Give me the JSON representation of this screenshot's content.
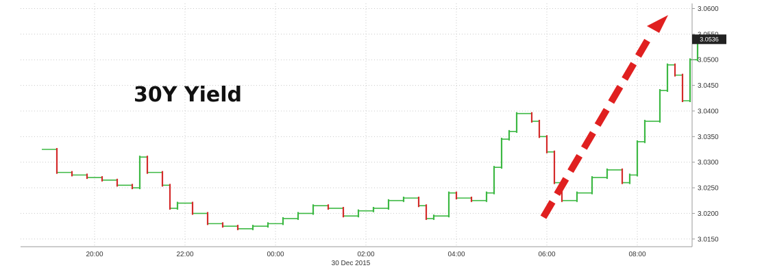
{
  "chart_data": {
    "type": "line",
    "title": "30Y Yield",
    "date_label": "30 Dec 2015",
    "x_ticks": [
      "20:00",
      "22:00",
      "00:00",
      "02:00",
      "04:00",
      "06:00",
      "08:00"
    ],
    "y_ticks": [
      "3.0150",
      "3.0200",
      "3.0250",
      "3.0300",
      "3.0350",
      "3.0400",
      "3.0450",
      "3.0500",
      "3.0550",
      "3.0600"
    ],
    "ylim": [
      3.0135,
      3.061
    ],
    "y_axis_position": "right",
    "grid": true,
    "last_value": "3.0536",
    "colors": {
      "up": "#3cb843",
      "down": "#d42a2a",
      "step_line": "#3cb843",
      "arrow": "#e02020",
      "last_tag_bg": "#222222"
    },
    "series": [
      {
        "x": [
          "18:50",
          "19:10",
          "19:30",
          "19:50",
          "20:10",
          "20:30",
          "20:50",
          "21:00",
          "21:10",
          "21:30",
          "21:40",
          "21:50",
          "22:10",
          "22:30",
          "22:50",
          "23:10",
          "23:30",
          "23:50",
          "00:10",
          "00:30",
          "00:50",
          "01:10",
          "01:30",
          "01:50",
          "02:10",
          "02:30",
          "02:50",
          "03:10",
          "03:20",
          "03:30",
          "03:50",
          "04:00",
          "04:20",
          "04:40",
          "04:50",
          "05:00",
          "05:10",
          "05:20",
          "05:40",
          "05:50",
          "06:00",
          "06:10",
          "06:20",
          "06:40",
          "07:00",
          "07:20",
          "07:40",
          "07:50",
          "08:00",
          "08:10",
          "08:30",
          "08:40",
          "08:50",
          "09:00",
          "09:10",
          "09:20"
        ],
        "y": [
          3.0325,
          3.028,
          3.0275,
          3.027,
          3.0265,
          3.0255,
          3.025,
          3.031,
          3.028,
          3.0255,
          3.021,
          3.022,
          3.02,
          3.018,
          3.0175,
          3.017,
          3.0175,
          3.018,
          3.019,
          3.02,
          3.0215,
          3.021,
          3.0195,
          3.0205,
          3.021,
          3.0225,
          3.023,
          3.0215,
          3.019,
          3.0195,
          3.024,
          3.023,
          3.0225,
          3.024,
          3.029,
          3.0345,
          3.036,
          3.0395,
          3.038,
          3.035,
          3.032,
          3.026,
          3.0225,
          3.024,
          3.027,
          3.0285,
          3.026,
          3.0275,
          3.034,
          3.038,
          3.044,
          3.049,
          3.047,
          3.042,
          3.05,
          3.054
        ]
      }
    ]
  }
}
